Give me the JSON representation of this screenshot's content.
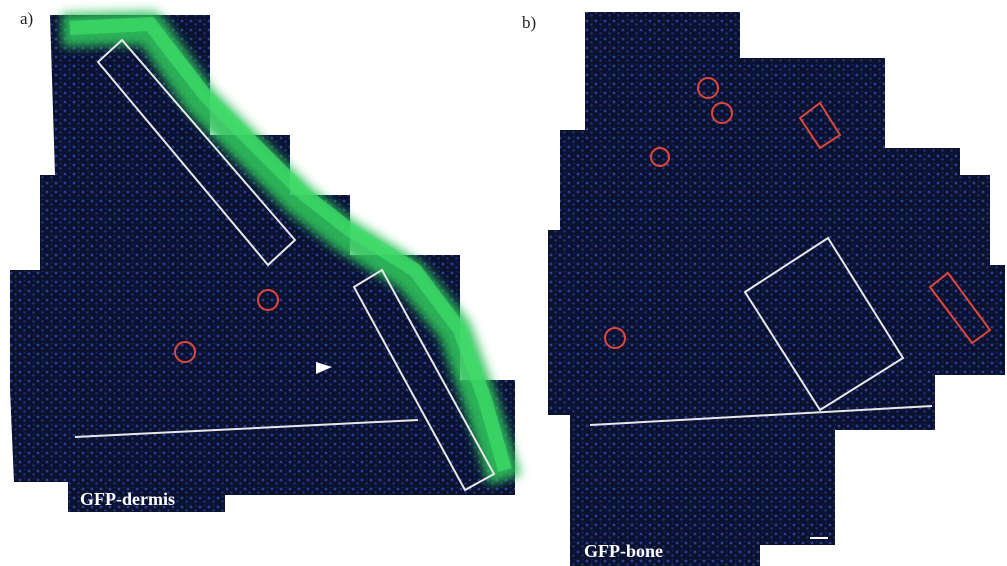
{
  "panels": [
    {
      "letter": "a)",
      "label": "GFP-dermis"
    },
    {
      "letter": "b)",
      "label": "GFP-bone"
    }
  ]
}
